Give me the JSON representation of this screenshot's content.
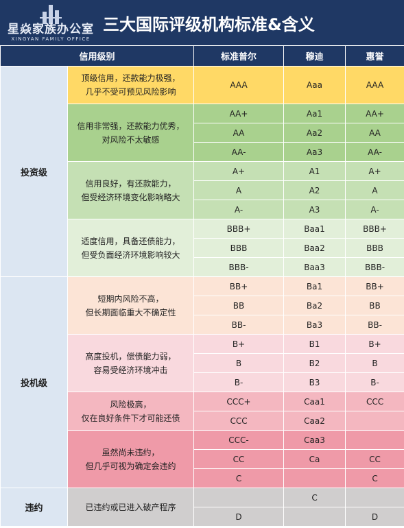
{
  "header": {
    "logo_name": "星焱家族办公室",
    "logo_en": "XINGYAN FAMILY OFFICE",
    "title": "三大国际评级机构标准&含义"
  },
  "table": {
    "columns": [
      "信用级别",
      "标准普尔",
      "穆迪",
      "惠誉"
    ],
    "groups": [
      {
        "category": "投资级",
        "tiers": [
          {
            "color": "#ffd966",
            "lines": [
              "顶级信用，还款能力极强，",
              "几乎不受可预见风险影响"
            ],
            "rows": [
              [
                "AAA",
                "Aaa",
                "AAA"
              ]
            ]
          },
          {
            "color": "#a9d18e",
            "lines": [
              "信用非常强，还款能力优秀，",
              "对风险不太敏感"
            ],
            "rows": [
              [
                "AA+",
                "Aa1",
                "AA+"
              ],
              [
                "AA",
                "Aa2",
                "AA"
              ],
              [
                "AA-",
                "Aa3",
                "AA-"
              ]
            ]
          },
          {
            "color": "#c5e0b4",
            "lines": [
              "信用良好，有还款能力，",
              "但受经济环境变化影响略大"
            ],
            "rows": [
              [
                "A+",
                "A1",
                "A+"
              ],
              [
                "A",
                "A2",
                "A"
              ],
              [
                "A-",
                "A3",
                "A-"
              ]
            ]
          },
          {
            "color": "#e2efd9",
            "lines": [
              "适度信用，具备还债能力，",
              "但受负面经济环境影响较大"
            ],
            "rows": [
              [
                "BBB+",
                "Baa1",
                "BBB+"
              ],
              [
                "BBB",
                "Baa2",
                "BBB"
              ],
              [
                "BBB-",
                "Baa3",
                "BBB-"
              ]
            ]
          }
        ]
      },
      {
        "category": "投机级",
        "tiers": [
          {
            "color": "#fce4d6",
            "lines": [
              "短期内风险不高，",
              "但长期面临重大不确定性"
            ],
            "rows": [
              [
                "BB+",
                "Ba1",
                "BB+"
              ],
              [
                "BB",
                "Ba2",
                "BB"
              ],
              [
                "BB-",
                "Ba3",
                "BB-"
              ]
            ]
          },
          {
            "color": "#f9d9de",
            "lines": [
              "高度投机，偿债能力弱，",
              "容易受经济环境冲击"
            ],
            "rows": [
              [
                "B+",
                "B1",
                "B+"
              ],
              [
                "B",
                "B2",
                "B"
              ],
              [
                "B-",
                "B3",
                "B-"
              ]
            ]
          },
          {
            "color": "#f4b7c0",
            "lines": [
              "风险极高，",
              "仅在良好条件下才可能还债"
            ],
            "rows": [
              [
                "CCC+",
                "Caa1",
                "CCC"
              ],
              [
                "CCC",
                "Caa2",
                null
              ]
            ]
          },
          {
            "color": "#ef9aa8",
            "lines": [
              "虽然尚未违约，",
              "但几乎可视为确定会违约"
            ],
            "rows": [
              [
                "CCC-",
                "Caa3",
                null
              ],
              [
                "CC",
                "Ca",
                "CC"
              ],
              [
                "C",
                null,
                "C"
              ]
            ]
          }
        ]
      },
      {
        "category": "违约",
        "tiers": [
          {
            "color": "#d0cece",
            "lines": [
              "已违约或已进入破产程序"
            ],
            "rows": [
              [
                null,
                "C",
                null
              ],
              [
                "D",
                null,
                "D"
              ]
            ]
          }
        ]
      }
    ]
  }
}
